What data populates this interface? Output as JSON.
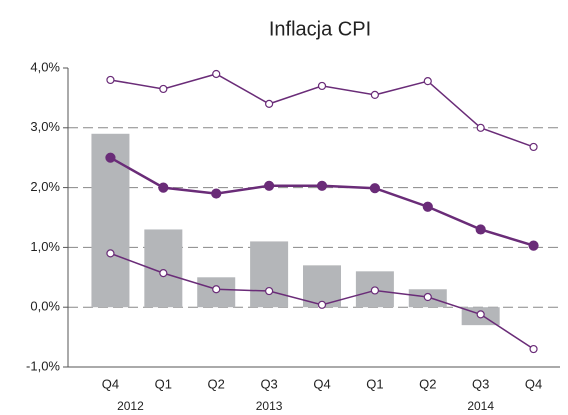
{
  "chart_data": {
    "type": "combo",
    "title": "Inflacja CPI",
    "categories": [
      "Q4",
      "Q1",
      "Q2",
      "Q3",
      "Q4",
      "Q1",
      "Q2",
      "Q3",
      "Q4"
    ],
    "year_labels": [
      "2012",
      null,
      null,
      "2013",
      null,
      null,
      null,
      "2014",
      null
    ],
    "ylim": [
      -1,
      4
    ],
    "yticks": [
      {
        "value": -1,
        "label": "-1,0%"
      },
      {
        "value": 0,
        "label": "0,0%"
      },
      {
        "value": 1,
        "label": "1,0%"
      },
      {
        "value": 2,
        "label": "2,0%"
      },
      {
        "value": 3,
        "label": "3,0%"
      },
      {
        "value": 4,
        "label": "4,0%"
      }
    ],
    "grid": true,
    "series": [
      {
        "type": "bar",
        "color": "#b4b6b9",
        "values": [
          2.9,
          1.3,
          0.5,
          1.1,
          0.7,
          0.6,
          0.3,
          -0.3,
          null
        ]
      },
      {
        "type": "line",
        "color": "#6a2c78",
        "marker_fill": "#ffffff",
        "values": [
          3.8,
          3.65,
          3.9,
          3.4,
          3.7,
          3.55,
          3.78,
          3.0,
          2.68
        ]
      },
      {
        "type": "line",
        "color": "#6a2c78",
        "marker_fill": "#6a2c78",
        "values": [
          2.5,
          2.0,
          1.9,
          2.03,
          2.03,
          1.99,
          1.68,
          1.3,
          1.03
        ]
      },
      {
        "type": "line",
        "color": "#6a2c78",
        "marker_fill": "#ffffff",
        "values": [
          0.9,
          0.57,
          0.3,
          0.27,
          0.04,
          0.28,
          0.17,
          -0.12,
          -0.7
        ]
      }
    ]
  }
}
